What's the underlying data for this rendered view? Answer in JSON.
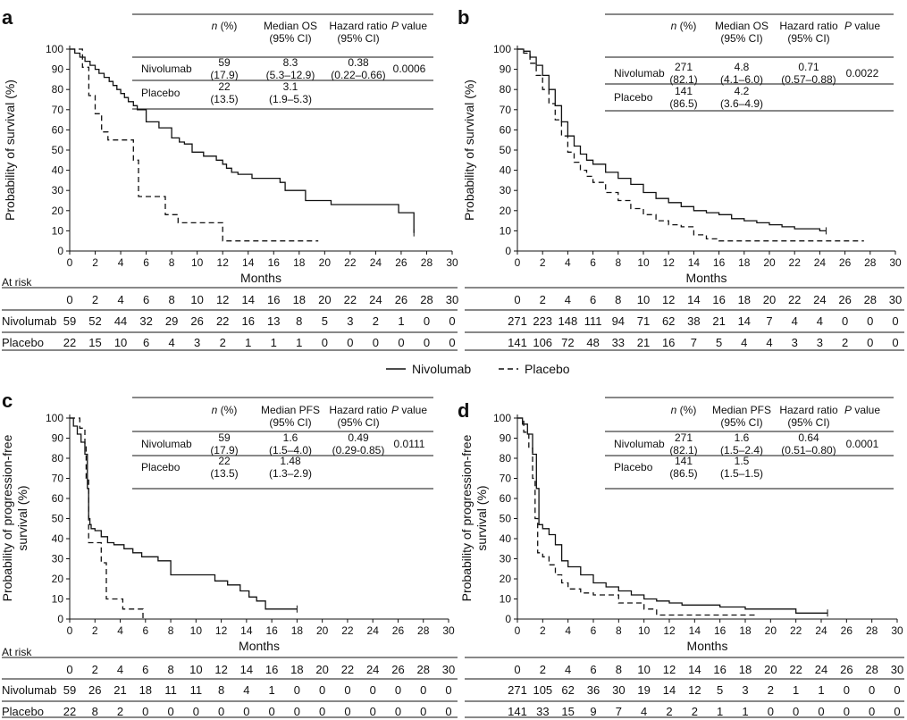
{
  "figure": {
    "legend": {
      "nivolumab": "Nivolumab",
      "placebo": "Placebo"
    },
    "at_risk_label": "At risk",
    "row_labels": {
      "nivolumab": "Nivolumab",
      "placebo": "Placebo"
    },
    "stats_headers": {
      "n": "n",
      "n_pct": " (%)",
      "os": [
        "Median OS",
        "(95% CI)"
      ],
      "pfs": [
        "Median PFS",
        "(95% CI)"
      ],
      "hr": [
        "Hazard ratio",
        "(95% CI)"
      ],
      "p": "P",
      "p_value": " value"
    }
  },
  "chart_data": [
    {
      "panel": "a",
      "type": "line",
      "endpoint": "OS",
      "xlabel": "Months",
      "ylabel": [
        "Probability of survival (%)"
      ],
      "xlim": [
        0,
        30
      ],
      "ylim": [
        0,
        100
      ],
      "xticks": [
        0,
        2,
        4,
        6,
        8,
        10,
        12,
        14,
        16,
        18,
        20,
        22,
        24,
        26,
        28,
        30
      ],
      "yticks": [
        0,
        10,
        20,
        30,
        40,
        50,
        60,
        70,
        80,
        90,
        100
      ],
      "series": [
        {
          "name": "Nivolumab",
          "style": "solid",
          "x": [
            0,
            0.4,
            0.8,
            1.2,
            1.6,
            2.0,
            2.3,
            2.7,
            3.1,
            3.4,
            3.7,
            4.0,
            4.3,
            4.6,
            5.0,
            5.3,
            6.0,
            7.0,
            8.0,
            8.6,
            9.0,
            9.6,
            10.5,
            11.5,
            12.0,
            12.3,
            12.7,
            13.2,
            14.3,
            16.5,
            16.9,
            18.5,
            20.5,
            25.8,
            27.0
          ],
          "y": [
            100,
            98,
            96,
            94,
            92,
            90,
            88,
            86,
            84,
            82,
            80,
            78,
            76,
            74,
            72,
            70,
            64,
            61,
            56,
            54,
            53,
            49,
            47,
            45,
            43,
            41,
            39,
            38,
            36,
            34,
            30,
            25,
            23,
            19,
            9
          ]
        },
        {
          "name": "Placebo",
          "style": "dashed",
          "x": [
            0,
            1.0,
            1.5,
            2.0,
            2.5,
            3.0,
            5.0,
            5.4,
            7.0,
            7.5,
            8.5,
            10.0,
            12.0,
            19.5
          ],
          "y": [
            100,
            91,
            77,
            68,
            59,
            55,
            45,
            27,
            27,
            18,
            14,
            14,
            5,
            5
          ]
        }
      ],
      "stats": {
        "metric": "OS",
        "nivolumab": {
          "n": "59",
          "pct": "(17.9)",
          "median": "8.3",
          "ci": "(5.3–12.9)",
          "hr": "0.38",
          "hr_ci": "(0.22–0.66)",
          "p": "0.0006"
        },
        "placebo": {
          "n": "22",
          "pct": "(13.5)",
          "median": "3.1",
          "ci": "(1.9–5.3)"
        }
      },
      "at_risk": {
        "times": [
          "0",
          "2",
          "4",
          "6",
          "8",
          "10",
          "12",
          "14",
          "16",
          "18",
          "20",
          "22",
          "24",
          "26",
          "28",
          "30"
        ],
        "nivolumab": [
          "59",
          "52",
          "44",
          "32",
          "29",
          "26",
          "22",
          "16",
          "13",
          "8",
          "5",
          "3",
          "2",
          "1",
          "0",
          "0"
        ],
        "placebo": [
          "22",
          "15",
          "10",
          "6",
          "4",
          "3",
          "2",
          "1",
          "1",
          "1",
          "0",
          "0",
          "0",
          "0",
          "0",
          "0"
        ]
      }
    },
    {
      "panel": "b",
      "type": "line",
      "endpoint": "OS",
      "xlabel": "Months",
      "ylabel": [
        "Probability of survival (%)"
      ],
      "xlim": [
        0,
        30
      ],
      "ylim": [
        0,
        100
      ],
      "xticks": [
        0,
        2,
        4,
        6,
        8,
        10,
        12,
        14,
        16,
        18,
        20,
        22,
        24,
        26,
        28,
        30
      ],
      "yticks": [
        0,
        10,
        20,
        30,
        40,
        50,
        60,
        70,
        80,
        90,
        100
      ],
      "series": [
        {
          "name": "Nivolumab",
          "style": "solid",
          "x": [
            0,
            0.5,
            1,
            1.5,
            2,
            2.5,
            3,
            3.5,
            4,
            4.5,
            5,
            5.5,
            6,
            7,
            8,
            9,
            10,
            11,
            12,
            13,
            14,
            15,
            16,
            17,
            18,
            19,
            20,
            21,
            22,
            24,
            24.5
          ],
          "y": [
            100,
            99,
            96,
            92,
            87,
            80,
            72,
            64,
            57,
            52,
            48,
            45,
            43,
            39,
            36,
            33,
            29,
            26,
            24,
            22,
            20,
            19,
            18,
            16,
            15,
            14,
            13,
            12,
            11,
            10,
            10
          ]
        },
        {
          "name": "Placebo",
          "style": "dashed",
          "x": [
            0,
            0.5,
            1,
            1.5,
            2,
            2.5,
            3,
            3.5,
            4,
            4.5,
            5,
            5.5,
            6,
            7,
            8,
            9,
            10,
            11,
            12,
            13,
            14,
            15,
            16,
            20,
            22,
            24,
            26,
            27.5
          ],
          "y": [
            100,
            98,
            93,
            87,
            80,
            73,
            65,
            57,
            49,
            44,
            40,
            37,
            34,
            29,
            25,
            21,
            18,
            15,
            13,
            12,
            8,
            6,
            5,
            5,
            5,
            5,
            5,
            5
          ]
        }
      ],
      "stats": {
        "metric": "OS",
        "nivolumab": {
          "n": "271",
          "pct": "(82.1)",
          "median": "4.8",
          "ci": "(4.1–6.0)",
          "hr": "0.71",
          "hr_ci": "(0.57–0.88)",
          "p": "0.0022"
        },
        "placebo": {
          "n": "141",
          "pct": "(86.5)",
          "median": "4.2",
          "ci": "(3.6–4.9)"
        }
      },
      "at_risk": {
        "times": [
          "0",
          "2",
          "4",
          "6",
          "8",
          "10",
          "12",
          "14",
          "16",
          "18",
          "20",
          "22",
          "24",
          "26",
          "28",
          "30"
        ],
        "nivolumab": [
          "271",
          "223",
          "148",
          "111",
          "94",
          "71",
          "62",
          "38",
          "21",
          "14",
          "7",
          "4",
          "4",
          "0",
          "0",
          "0"
        ],
        "placebo": [
          "141",
          "106",
          "72",
          "48",
          "33",
          "21",
          "16",
          "7",
          "5",
          "4",
          "4",
          "3",
          "3",
          "2",
          "0",
          "0"
        ]
      }
    },
    {
      "panel": "c",
      "type": "line",
      "endpoint": "PFS",
      "xlabel": "Months",
      "ylabel": [
        "Probability of progression-free",
        "survival (%)"
      ],
      "xlim": [
        0,
        30
      ],
      "ylim": [
        0,
        100
      ],
      "xticks": [
        0,
        2,
        4,
        6,
        8,
        10,
        12,
        14,
        16,
        18,
        20,
        22,
        24,
        26,
        28,
        30
      ],
      "yticks": [
        0,
        10,
        20,
        30,
        40,
        50,
        60,
        70,
        80,
        90,
        100
      ],
      "series": [
        {
          "name": "Nivolumab",
          "style": "solid",
          "x": [
            0,
            0.3,
            0.6,
            0.9,
            1.2,
            1.4,
            1.5,
            1.6,
            1.7,
            2.0,
            2.5,
            3.0,
            3.5,
            4.3,
            5.0,
            5.7,
            7.0,
            8.0,
            11.0,
            11.5,
            12.5,
            13.5,
            14.2,
            14.8,
            15.5,
            18.0
          ],
          "y": [
            100,
            96,
            92,
            88,
            82,
            65,
            50,
            47,
            45,
            44,
            41,
            38,
            37,
            35,
            33,
            31,
            29,
            22,
            22,
            19,
            17,
            14,
            11,
            9,
            5,
            5
          ]
        },
        {
          "name": "Placebo",
          "style": "dashed",
          "x": [
            0,
            0.8,
            1.2,
            1.3,
            1.5,
            2.0,
            2.5,
            2.9,
            3.5,
            4.2,
            5.3,
            5.8
          ],
          "y": [
            100,
            95,
            86,
            70,
            38,
            38,
            28,
            10,
            10,
            5,
            5,
            0
          ]
        }
      ],
      "stats": {
        "metric": "PFS",
        "nivolumab": {
          "n": "59",
          "pct": "(17.9)",
          "median": "1.6",
          "ci": "(1.5–4.0)",
          "hr": "0.49",
          "hr_ci": "(0.29-0.85)",
          "p": "0.0111"
        },
        "placebo": {
          "n": "22",
          "pct": "(13.5)",
          "median": "1.48",
          "ci": "(1.3–2.9)"
        }
      },
      "at_risk": {
        "times": [
          "0",
          "2",
          "4",
          "6",
          "8",
          "10",
          "12",
          "14",
          "16",
          "18",
          "20",
          "22",
          "24",
          "26",
          "28",
          "30"
        ],
        "nivolumab": [
          "59",
          "26",
          "21",
          "18",
          "11",
          "11",
          "8",
          "4",
          "1",
          "0",
          "0",
          "0",
          "0",
          "0",
          "0",
          "0"
        ],
        "placebo": [
          "22",
          "8",
          "2",
          "0",
          "0",
          "0",
          "0",
          "0",
          "0",
          "0",
          "0",
          "0",
          "0",
          "0",
          "0",
          "0"
        ]
      }
    },
    {
      "panel": "d",
      "type": "line",
      "endpoint": "PFS",
      "xlabel": "Months",
      "ylabel": [
        "Probability of progression-free",
        "survival (%)"
      ],
      "xlim": [
        0,
        30
      ],
      "ylim": [
        0,
        100
      ],
      "xticks": [
        0,
        2,
        4,
        6,
        8,
        10,
        12,
        14,
        16,
        18,
        20,
        22,
        24,
        26,
        28,
        30
      ],
      "yticks": [
        0,
        10,
        20,
        30,
        40,
        50,
        60,
        70,
        80,
        90,
        100
      ],
      "series": [
        {
          "name": "Nivolumab",
          "style": "solid",
          "x": [
            0,
            0.4,
            0.8,
            1.2,
            1.5,
            1.7,
            2.0,
            2.5,
            3.0,
            3.5,
            4.0,
            5.0,
            6.0,
            7.0,
            8.0,
            9.0,
            10.0,
            11.0,
            12.0,
            13.0,
            14.0,
            16.0,
            18.0,
            20.0,
            22.0,
            24.5
          ],
          "y": [
            100,
            97,
            92,
            82,
            65,
            47,
            45,
            42,
            37,
            29,
            26,
            22,
            18,
            16,
            14,
            12,
            10,
            9,
            8,
            7,
            7,
            6,
            5,
            5,
            3,
            3
          ]
        },
        {
          "name": "Placebo",
          "style": "dashed",
          "x": [
            0,
            0.5,
            0.9,
            1.2,
            1.4,
            1.6,
            2.0,
            2.5,
            3.0,
            3.5,
            4.0,
            5.0,
            6.0,
            8.0,
            10.0,
            11.0,
            19.0
          ],
          "y": [
            100,
            93,
            85,
            70,
            50,
            33,
            31,
            27,
            22,
            18,
            15,
            13,
            12,
            8,
            5,
            2,
            2
          ]
        }
      ],
      "stats": {
        "metric": "PFS",
        "nivolumab": {
          "n": "271",
          "pct": "(82.1)",
          "median": "1.6",
          "ci": "(1.5–2.4)",
          "hr": "0.64",
          "hr_ci": "(0.51–0.80)",
          "p": "0.0001"
        },
        "placebo": {
          "n": "141",
          "pct": "(86.5)",
          "median": "1.5",
          "ci": "(1.5–1.5)"
        }
      },
      "at_risk": {
        "times": [
          "0",
          "2",
          "4",
          "6",
          "8",
          "10",
          "12",
          "14",
          "16",
          "18",
          "20",
          "22",
          "24",
          "26",
          "28",
          "30"
        ],
        "nivolumab": [
          "271",
          "105",
          "62",
          "36",
          "30",
          "19",
          "14",
          "12",
          "5",
          "3",
          "2",
          "1",
          "1",
          "0",
          "0",
          "0"
        ],
        "placebo": [
          "141",
          "33",
          "15",
          "9",
          "7",
          "4",
          "2",
          "2",
          "1",
          "1",
          "0",
          "0",
          "0",
          "0",
          "0",
          "0"
        ]
      }
    }
  ]
}
